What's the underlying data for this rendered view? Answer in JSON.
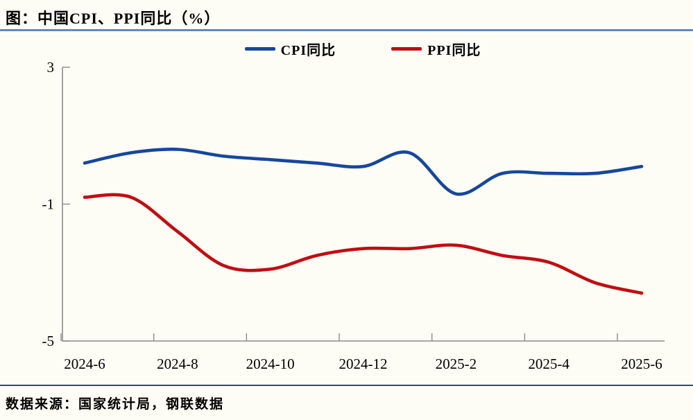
{
  "header": {
    "title": "图：中国CPI、PPI同比（%）"
  },
  "footer": {
    "source": "数据来源：国家统计局，钢联数据"
  },
  "colors": {
    "background": "#FDFCF5",
    "title_divider": "#6288BC",
    "source_divider": "#1D4CA0",
    "axis": "#8C8C8C",
    "cpi_line": "#17479C",
    "ppi_line": "#C00D12"
  },
  "chart_data": {
    "type": "line",
    "title": "中国CPI、PPI同比（%）",
    "x": [
      "2024-6",
      "2024-7",
      "2024-8",
      "2024-9",
      "2024-10",
      "2024-11",
      "2024-12",
      "2025-1",
      "2025-2",
      "2025-3",
      "2025-4",
      "2025-5",
      "2025-6"
    ],
    "x_tick_labels": [
      "2024-6",
      "2024-8",
      "2024-10",
      "2024-12",
      "2025-2",
      "2025-4",
      "2025-6"
    ],
    "y_ticks": [
      3,
      -1,
      -5
    ],
    "ylim": [
      -5,
      3
    ],
    "grid": false,
    "smooth": true,
    "legend_position": "top",
    "series": [
      {
        "name": "CPI同比",
        "color": "#17479C",
        "values": [
          0.2,
          0.5,
          0.6,
          0.4,
          0.3,
          0.2,
          0.1,
          0.5,
          -0.7,
          -0.1,
          -0.1,
          -0.1,
          0.1
        ]
      },
      {
        "name": "PPI同比",
        "color": "#C00D12",
        "values": [
          -0.8,
          -0.8,
          -1.8,
          -2.8,
          -2.9,
          -2.5,
          -2.3,
          -2.3,
          -2.2,
          -2.5,
          -2.7,
          -3.3,
          -3.6
        ]
      }
    ]
  }
}
